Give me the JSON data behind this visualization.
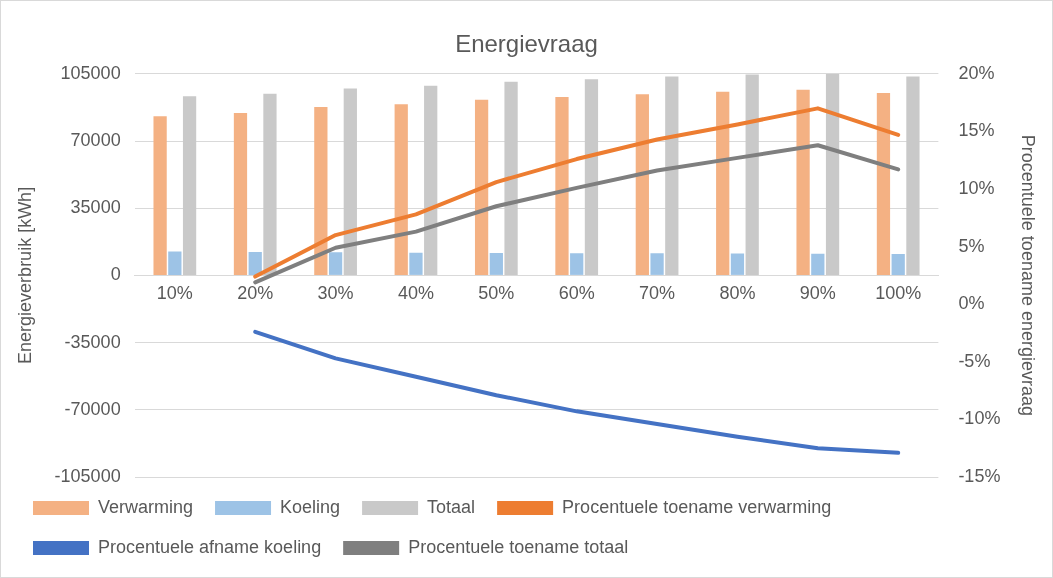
{
  "chart_data": {
    "type": "bar",
    "title": "Energievraag",
    "ylabel": "Energieverbruik [kWh]",
    "y2label": "Procentuele toename energievraag",
    "categories": [
      "10%",
      "20%",
      "30%",
      "40%",
      "50%",
      "60%",
      "70%",
      "80%",
      "90%",
      "100%"
    ],
    "series": [
      {
        "name": "Verwarming",
        "color": "#f4b183",
        "values": [
          82900,
          84600,
          87700,
          89100,
          91500,
          92900,
          94300,
          95700,
          96700,
          95000
        ]
      },
      {
        "name": "Koeling",
        "color": "#9dc3e6",
        "values": [
          12400,
          12200,
          12000,
          11800,
          11700,
          11600,
          11500,
          11400,
          11300,
          11200
        ]
      },
      {
        "name": "Totaal",
        "color": "#c9c9c9",
        "values": [
          93300,
          94600,
          97400,
          98800,
          100900,
          102200,
          103600,
          104700,
          105000,
          103600
        ]
      },
      {
        "name": "Procentuele toename verwarming",
        "type": "line",
        "axis": "y2",
        "color": "#ed7d31",
        "values": [
          null,
          2.4,
          6.0,
          7.8,
          10.6,
          12.6,
          14.3,
          15.6,
          17.0,
          14.7
        ]
      },
      {
        "name": "Procentuele afname koeling",
        "type": "line",
        "axis": "y2",
        "color": "#4472c4",
        "values": [
          null,
          -2.4,
          -4.7,
          -6.3,
          -7.9,
          -9.3,
          -10.4,
          -11.5,
          -12.5,
          -12.9
        ]
      },
      {
        "name": "Procentuele toename totaal",
        "type": "line",
        "axis": "y2",
        "color": "#7f7f7f",
        "values": [
          null,
          1.9,
          4.9,
          6.3,
          8.5,
          10.1,
          11.6,
          12.7,
          13.8,
          11.7
        ]
      }
    ],
    "ylim": [
      -105000,
      105000
    ],
    "yticks": [
      -105000,
      -70000,
      -35000,
      0,
      35000,
      70000,
      105000
    ],
    "y2lim": [
      -15,
      20
    ],
    "y2ticks": [
      {
        "value": -15,
        "label": "-15%"
      },
      {
        "value": -10,
        "label": "-10%"
      },
      {
        "value": -5,
        "label": "-5%"
      },
      {
        "value": 0,
        "label": "0%"
      },
      {
        "value": 5,
        "label": "5%"
      },
      {
        "value": 10,
        "label": "10%"
      },
      {
        "value": 15,
        "label": "15%"
      },
      {
        "value": 20,
        "label": "20%"
      }
    ],
    "grid": "y",
    "legend": "bottom",
    "marker": "none",
    "line_style": "solid"
  }
}
